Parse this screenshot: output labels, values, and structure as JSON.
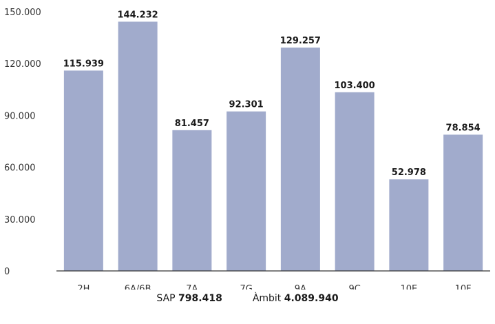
{
  "chart_data": {
    "type": "bar",
    "categories": [
      "2H",
      "6A/6B",
      "7A",
      "7G",
      "9A",
      "9C",
      "10E",
      "10F"
    ],
    "values": [
      115939,
      144232,
      81457,
      92301,
      129257,
      103400,
      52978,
      78854
    ],
    "data_labels": [
      "115.939",
      "144.232",
      "81.457",
      "92.301",
      "129.257",
      "103.400",
      "52.978",
      "78.854"
    ],
    "ylim": [
      0,
      150000
    ],
    "yticks": [
      0,
      30000,
      60000,
      90000,
      120000,
      150000
    ],
    "ytick_labels": [
      "0",
      "30.000",
      "60.000",
      "90.000",
      "120.000",
      "150.000"
    ],
    "grid": false,
    "bar_color": "#a1abcc",
    "title": "",
    "xlabel": "",
    "ylabel": ""
  },
  "footer": {
    "sap_label": "SAP",
    "sap_value": "798.418",
    "ambit_label": "Àmbit",
    "ambit_value": "4.089.940"
  }
}
